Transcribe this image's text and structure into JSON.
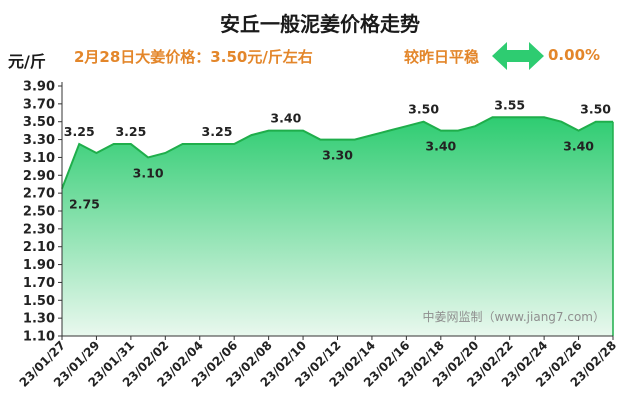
{
  "header": {
    "title": "安丘一般泥姜价格走势",
    "unit": "元/斤",
    "price_text": "2月28日大姜价格：3.50元/斤左右",
    "status_text": "较昨日平稳",
    "change_text": "0.00%",
    "arrow_icon": "double-arrow-icon",
    "arrow_color": "#2ecc71"
  },
  "watermark": "中姜网监制（www.jiang7.com）",
  "chart_data": {
    "type": "area",
    "title": "安丘一般泥姜价格走势",
    "xlabel": "",
    "ylabel": "元/斤",
    "ylim": [
      1.1,
      3.9
    ],
    "y_ticks": [
      "1.10",
      "1.30",
      "1.50",
      "1.70",
      "1.90",
      "2.10",
      "2.30",
      "2.50",
      "2.70",
      "2.90",
      "3.10",
      "3.30",
      "3.50",
      "3.70",
      "3.90"
    ],
    "x_tick_labels": [
      "23/01/27",
      "23/01/29",
      "23/01/31",
      "23/02/02",
      "23/02/04",
      "23/02/06",
      "23/02/08",
      "23/02/10",
      "23/02/12",
      "23/02/14",
      "23/02/16",
      "23/02/18",
      "23/02/20",
      "23/02/22",
      "23/02/24",
      "23/02/26",
      "23/02/28"
    ],
    "x": [
      "23/01/27",
      "23/01/28",
      "23/01/29",
      "23/01/30",
      "23/01/31",
      "23/02/01",
      "23/02/02",
      "23/02/03",
      "23/02/04",
      "23/02/05",
      "23/02/06",
      "23/02/07",
      "23/02/08",
      "23/02/09",
      "23/02/10",
      "23/02/11",
      "23/02/12",
      "23/02/13",
      "23/02/14",
      "23/02/15",
      "23/02/16",
      "23/02/17",
      "23/02/18",
      "23/02/19",
      "23/02/20",
      "23/02/21",
      "23/02/22",
      "23/02/23",
      "23/02/24",
      "23/02/25",
      "23/02/26",
      "23/02/27",
      "23/02/28"
    ],
    "values": [
      2.75,
      3.25,
      3.15,
      3.25,
      3.25,
      3.1,
      3.15,
      3.25,
      3.25,
      3.25,
      3.25,
      3.35,
      3.4,
      3.4,
      3.4,
      3.3,
      3.3,
      3.3,
      3.35,
      3.4,
      3.45,
      3.5,
      3.4,
      3.4,
      3.45,
      3.55,
      3.55,
      3.55,
      3.55,
      3.5,
      3.4,
      3.5,
      3.5
    ],
    "data_labels": [
      {
        "index": 0,
        "text": "2.75",
        "side": "below"
      },
      {
        "index": 1,
        "text": "3.25",
        "side": "above"
      },
      {
        "index": 4,
        "text": "3.25",
        "side": "above"
      },
      {
        "index": 5,
        "text": "3.10",
        "side": "below"
      },
      {
        "index": 9,
        "text": "3.25",
        "side": "above"
      },
      {
        "index": 13,
        "text": "3.40",
        "side": "above"
      },
      {
        "index": 16,
        "text": "3.30",
        "side": "below"
      },
      {
        "index": 21,
        "text": "3.50",
        "side": "above"
      },
      {
        "index": 22,
        "text": "3.40",
        "side": "below"
      },
      {
        "index": 26,
        "text": "3.55",
        "side": "above"
      },
      {
        "index": 30,
        "text": "3.40",
        "side": "below"
      },
      {
        "index": 32,
        "text": "3.50",
        "side": "above"
      }
    ],
    "grid": false,
    "line_color": "#1fae4b",
    "fill_top_color": "#2ecc71",
    "fill_bottom_color": "#e9f8ee"
  }
}
